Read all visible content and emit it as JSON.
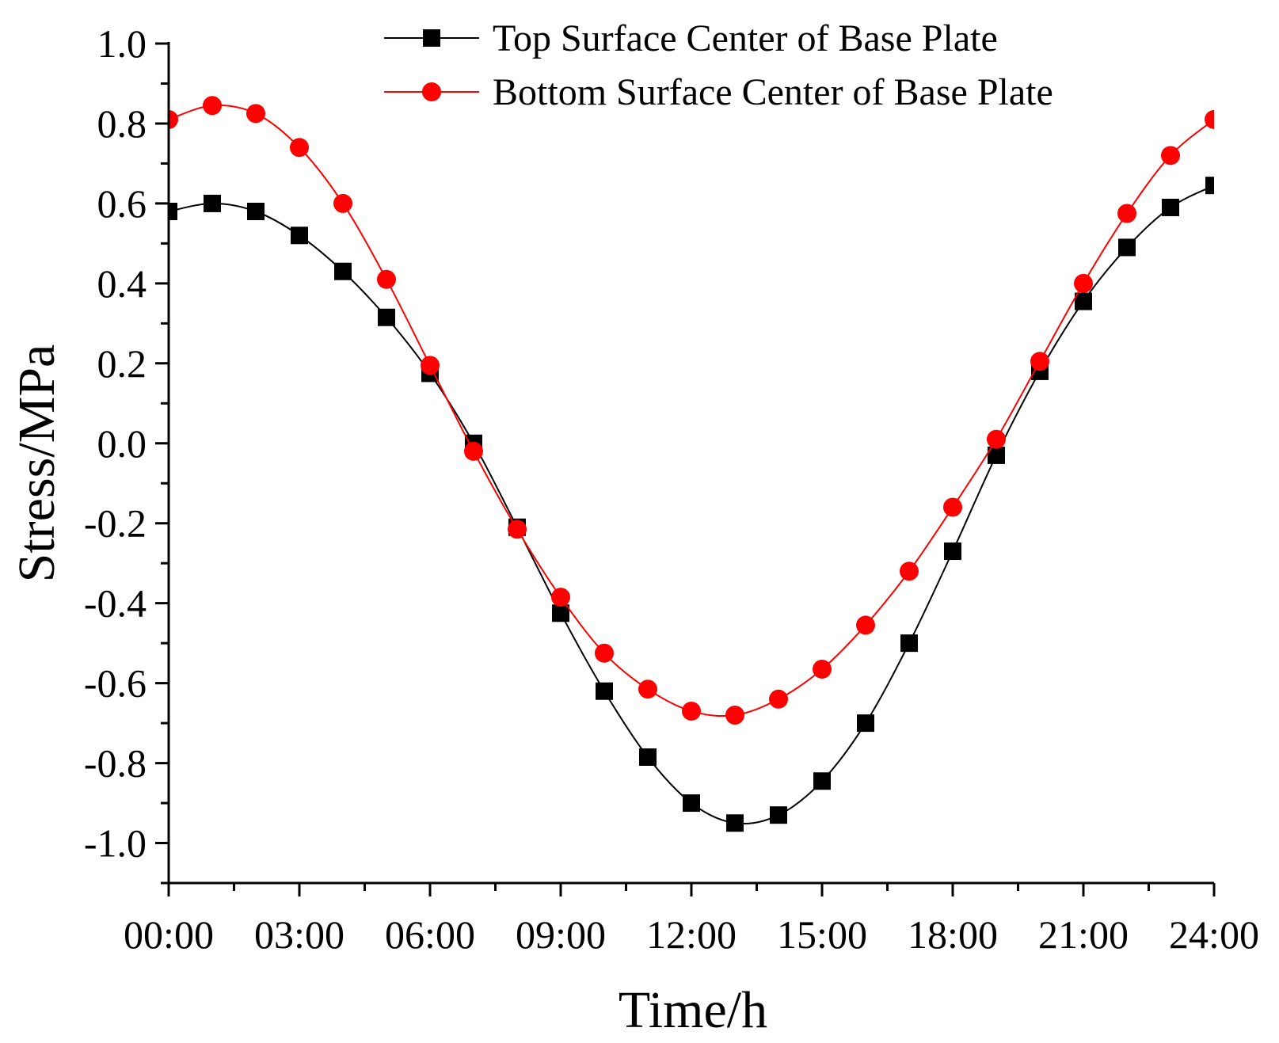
{
  "chart_data": {
    "type": "line",
    "xlabel": "Time/h",
    "ylabel": "Stress/MPa",
    "x": [
      0,
      1,
      2,
      3,
      4,
      5,
      6,
      7,
      8,
      9,
      10,
      11,
      12,
      13,
      14,
      15,
      16,
      17,
      18,
      19,
      20,
      21,
      22,
      23,
      24
    ],
    "xlim": [
      0,
      24
    ],
    "ylim": [
      -1.1,
      1.0
    ],
    "x_ticks": [
      {
        "value": 0,
        "label": "00:00"
      },
      {
        "value": 3,
        "label": "03:00"
      },
      {
        "value": 6,
        "label": "06:00"
      },
      {
        "value": 9,
        "label": "09:00"
      },
      {
        "value": 12,
        "label": "12:00"
      },
      {
        "value": 15,
        "label": "15:00"
      },
      {
        "value": 18,
        "label": "18:00"
      },
      {
        "value": 21,
        "label": "21:00"
      },
      {
        "value": 24,
        "label": "24:00"
      }
    ],
    "y_ticks": [
      {
        "value": 1.0,
        "label": "1.0"
      },
      {
        "value": 0.8,
        "label": "0.8"
      },
      {
        "value": 0.6,
        "label": "0.6"
      },
      {
        "value": 0.4,
        "label": "0.4"
      },
      {
        "value": 0.2,
        "label": "0.2"
      },
      {
        "value": 0.0,
        "label": "0.0"
      },
      {
        "value": -0.2,
        "label": "-0.2"
      },
      {
        "value": -0.4,
        "label": "-0.4"
      },
      {
        "value": -0.6,
        "label": "-0.6"
      },
      {
        "value": -0.8,
        "label": "-0.8"
      },
      {
        "value": -1.0,
        "label": "-1.0"
      }
    ],
    "grid": false,
    "legend_position": "top-right",
    "series": [
      {
        "name": "Top Surface Center of Base Plate",
        "color": "#000000",
        "marker": "square",
        "values": [
          0.58,
          0.6,
          0.58,
          0.52,
          0.43,
          0.315,
          0.175,
          0.0,
          -0.21,
          -0.425,
          -0.62,
          -0.785,
          -0.9,
          -0.95,
          -0.93,
          -0.845,
          -0.7,
          -0.5,
          -0.27,
          -0.03,
          0.18,
          0.355,
          0.49,
          0.59,
          0.645
        ]
      },
      {
        "name": "Bottom Surface Center of Base Plate",
        "color": "#ff0000",
        "marker": "circle",
        "values": [
          0.81,
          0.845,
          0.825,
          0.74,
          0.6,
          0.41,
          0.195,
          -0.02,
          -0.215,
          -0.385,
          -0.525,
          -0.615,
          -0.67,
          -0.68,
          -0.64,
          -0.565,
          -0.455,
          -0.32,
          -0.16,
          0.01,
          0.205,
          0.4,
          0.575,
          0.72,
          0.81
        ]
      }
    ]
  }
}
